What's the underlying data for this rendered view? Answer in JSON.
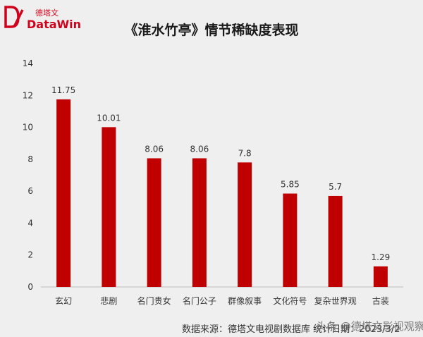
{
  "brand": {
    "name_cn": "德塔文",
    "name_en": "DataWin",
    "accent": "#d0021b"
  },
  "footer": {
    "source_text": "数据来源：德塔文电视剧数据库    统计日期：2023/3/2"
  },
  "watermark": {
    "text": "头条 @德塔文影视观察"
  },
  "chart_data": {
    "type": "bar",
    "title": "《淮水竹亭》情节稀缺度表现",
    "categories": [
      "玄幻",
      "悲剧",
      "名门贵女",
      "名门公子",
      "群像叙事",
      "文化符号",
      "复杂世界观",
      "古装"
    ],
    "values": [
      11.75,
      10.01,
      8.06,
      8.06,
      7.8,
      5.85,
      5.7,
      1.29
    ],
    "value_labels": [
      "11.75",
      "10.01",
      "8.06",
      "8.06",
      "7.8",
      "5.85",
      "5.7",
      "1.29"
    ],
    "ylim": [
      0,
      14
    ],
    "yticks": [
      0,
      2,
      4,
      6,
      8,
      10,
      12,
      14
    ],
    "grid": false,
    "bar_color": "#c00000",
    "xlabel": "",
    "ylabel": ""
  }
}
